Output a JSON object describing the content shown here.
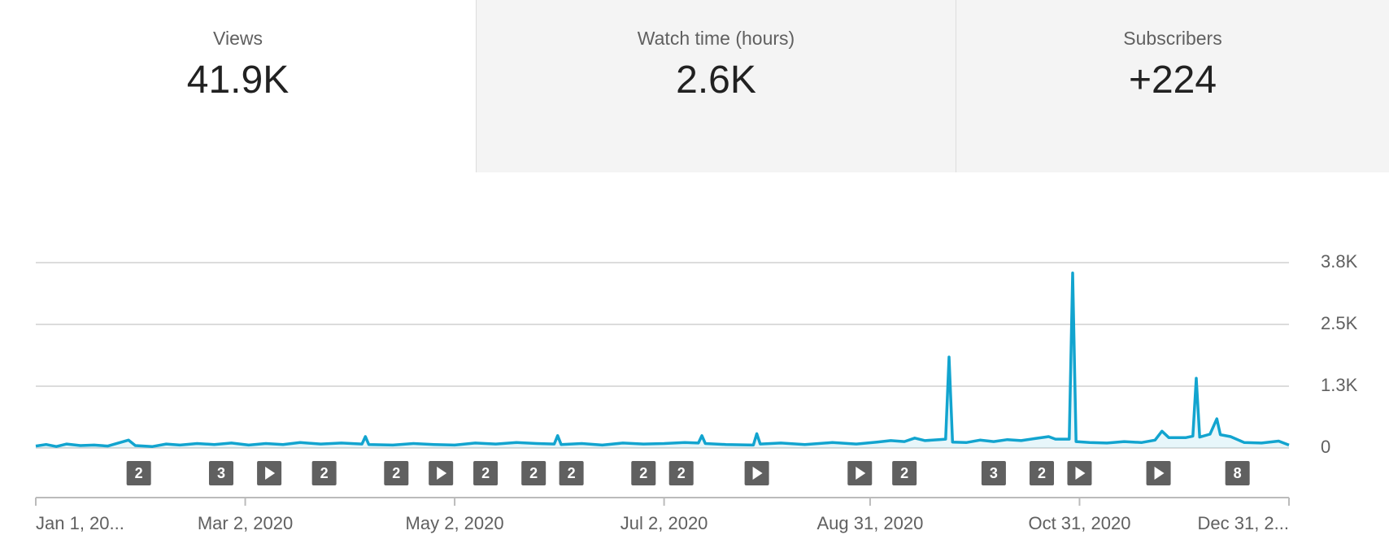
{
  "tabs": [
    {
      "label": "Views",
      "value": "41.9K"
    },
    {
      "label": "Watch time (hours)",
      "value": "2.6K"
    },
    {
      "label": "Subscribers",
      "value": "+224"
    }
  ],
  "chart_data": {
    "type": "line",
    "color": "#12a4cf",
    "grid": true,
    "xlim": [
      "2020-01-01",
      "2020-12-31"
    ],
    "xticks": [
      {
        "value": "2020-01-01",
        "label": "Jan 1, 20..."
      },
      {
        "value": "2020-03-02",
        "label": "Mar 2, 2020"
      },
      {
        "value": "2020-05-02",
        "label": "May 2, 2020"
      },
      {
        "value": "2020-07-02",
        "label": "Jul 2, 2020"
      },
      {
        "value": "2020-08-31",
        "label": "Aug 31, 2020"
      },
      {
        "value": "2020-10-31",
        "label": "Oct 31, 2020"
      },
      {
        "value": "2020-12-31",
        "label": "Dec 31, 2..."
      }
    ],
    "ylim": [
      0,
      3750
    ],
    "yticks": [
      0,
      {
        "value": 1250,
        "label": "1.3K"
      },
      {
        "value": 2500,
        "label": "2.5K"
      },
      {
        "value": 3750,
        "label": "3.8K"
      }
    ],
    "x": [
      "2020-01-01",
      "2020-01-04",
      "2020-01-07",
      "2020-01-10",
      "2020-01-14",
      "2020-01-18",
      "2020-01-22",
      "2020-01-25",
      "2020-01-28",
      "2020-01-30",
      "2020-02-04",
      "2020-02-08",
      "2020-02-12",
      "2020-02-17",
      "2020-02-22",
      "2020-02-27",
      "2020-03-03",
      "2020-03-08",
      "2020-03-13",
      "2020-03-18",
      "2020-03-24",
      "2020-03-30",
      "2020-04-05",
      "2020-04-06",
      "2020-04-07",
      "2020-04-14",
      "2020-04-20",
      "2020-04-26",
      "2020-05-02",
      "2020-05-08",
      "2020-05-14",
      "2020-05-20",
      "2020-05-26",
      "2020-05-31",
      "2020-06-01",
      "2020-06-02",
      "2020-06-08",
      "2020-06-14",
      "2020-06-20",
      "2020-06-26",
      "2020-07-02",
      "2020-07-08",
      "2020-07-12",
      "2020-07-13",
      "2020-07-14",
      "2020-07-20",
      "2020-07-28",
      "2020-07-29",
      "2020-07-30",
      "2020-08-05",
      "2020-08-12",
      "2020-08-20",
      "2020-08-27",
      "2020-09-02",
      "2020-09-06",
      "2020-09-10",
      "2020-09-13",
      "2020-09-16",
      "2020-09-20",
      "2020-09-22",
      "2020-09-23",
      "2020-09-24",
      "2020-09-28",
      "2020-10-02",
      "2020-10-06",
      "2020-10-10",
      "2020-10-14",
      "2020-10-18",
      "2020-10-22",
      "2020-10-24",
      "2020-10-28",
      "2020-10-29",
      "2020-10-30",
      "2020-11-03",
      "2020-11-08",
      "2020-11-13",
      "2020-11-18",
      "2020-11-22",
      "2020-11-24",
      "2020-11-26",
      "2020-12-01",
      "2020-12-03",
      "2020-12-04",
      "2020-12-05",
      "2020-12-08",
      "2020-12-10",
      "2020-12-11",
      "2020-12-14",
      "2020-12-18",
      "2020-12-23",
      "2020-12-28",
      "2020-12-31"
    ],
    "values": [
      40,
      70,
      30,
      80,
      50,
      60,
      40,
      100,
      160,
      50,
      30,
      80,
      60,
      90,
      70,
      100,
      60,
      90,
      70,
      110,
      80,
      100,
      80,
      230,
      70,
      60,
      90,
      70,
      60,
      100,
      80,
      110,
      90,
      80,
      250,
      70,
      90,
      60,
      100,
      80,
      90,
      110,
      100,
      250,
      90,
      70,
      60,
      290,
      80,
      100,
      70,
      110,
      80,
      120,
      150,
      130,
      200,
      150,
      170,
      180,
      1840,
      120,
      110,
      160,
      130,
      170,
      150,
      190,
      230,
      180,
      180,
      3540,
      130,
      110,
      100,
      130,
      110,
      160,
      340,
      210,
      210,
      240,
      1410,
      220,
      280,
      590,
      270,
      230,
      110,
      100,
      140,
      60
    ],
    "markers": [
      {
        "x": "2020-01-31",
        "label": "2"
      },
      {
        "x": "2020-02-24",
        "label": "3"
      },
      {
        "x": "2020-03-09"
      },
      {
        "x": "2020-03-25",
        "label": "2"
      },
      {
        "x": "2020-04-15",
        "label": "2"
      },
      {
        "x": "2020-04-28"
      },
      {
        "x": "2020-05-11",
        "label": "2"
      },
      {
        "x": "2020-05-25",
        "label": "2"
      },
      {
        "x": "2020-06-05",
        "label": "2"
      },
      {
        "x": "2020-06-26",
        "label": "2"
      },
      {
        "x": "2020-07-07",
        "label": "2"
      },
      {
        "x": "2020-07-29"
      },
      {
        "x": "2020-08-28"
      },
      {
        "x": "2020-09-10",
        "label": "2"
      },
      {
        "x": "2020-10-06",
        "label": "3"
      },
      {
        "x": "2020-10-20",
        "label": "2"
      },
      {
        "x": "2020-10-31"
      },
      {
        "x": "2020-11-23"
      },
      {
        "x": "2020-12-16",
        "label": "8"
      }
    ]
  }
}
